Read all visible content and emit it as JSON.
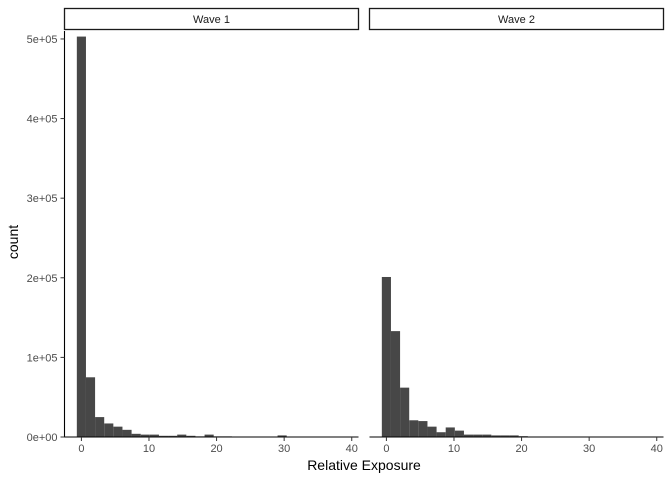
{
  "chart_data": {
    "type": "bar",
    "subtype": "faceted-histogram",
    "xlabel": "Relative Exposure",
    "ylabel": "count",
    "xlim": [
      -2.5,
      41
    ],
    "ylim": [
      0,
      510000
    ],
    "x_ticks": [
      0,
      10,
      20,
      30,
      40
    ],
    "x_tick_labels": [
      "0",
      "10",
      "20",
      "30",
      "40"
    ],
    "y_ticks": [
      0,
      100000,
      200000,
      300000,
      400000,
      500000
    ],
    "y_tick_labels": [
      "0e+00",
      "1e+05",
      "2e+05",
      "3e+05",
      "4e+05",
      "5e+05"
    ],
    "grid": false,
    "bin_width": 1.35,
    "bin_start": -0.675,
    "panels": [
      {
        "label": "Wave 1",
        "counts": [
          503000,
          75000,
          25000,
          17000,
          13000,
          9000,
          4000,
          3000,
          3000,
          1500,
          1500,
          3000,
          1500,
          800,
          3000,
          800,
          800,
          500,
          500,
          500,
          500,
          500,
          2000,
          300,
          300,
          200,
          300,
          200,
          200
        ]
      },
      {
        "label": "Wave 2",
        "counts": [
          201000,
          133000,
          62000,
          21000,
          20000,
          13000,
          6000,
          12000,
          8000,
          3000,
          3000,
          3000,
          2000,
          2000,
          2000,
          1000,
          500,
          500,
          500,
          500,
          500,
          500,
          500,
          300,
          300,
          200,
          200,
          200
        ]
      }
    ]
  }
}
